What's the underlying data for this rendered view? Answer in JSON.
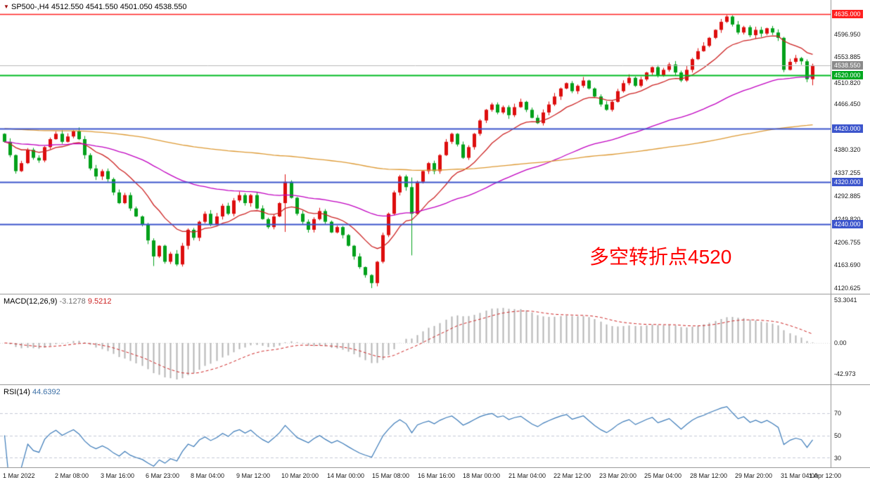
{
  "titlebar": {
    "symbol": "SP500-,H4",
    "ohlc": "4512.550 4541.550 4501.050 4538.550"
  },
  "price_panel": {
    "annotation": "多空转折点4520",
    "annotation_color": "#ff0000",
    "boxed_labels": [
      {
        "text": "4635.000",
        "color": "#ff2020"
      },
      {
        "text": "4538.550",
        "color": "#8a8a8a"
      },
      {
        "text": "4520.000",
        "color": "#00a81f"
      },
      {
        "text": "4420.000",
        "color": "#3c55cc"
      },
      {
        "text": "4320.000",
        "color": "#3c55cc"
      },
      {
        "text": "4240.000",
        "color": "#3c55cc"
      }
    ],
    "ticks": [
      "4596.950",
      "4553.885",
      "4510.820",
      "4466.450",
      "4380.320",
      "4337.255",
      "4292.885",
      "4249.820",
      "4206.755",
      "4163.690",
      "4120.625"
    ]
  },
  "macd_panel": {
    "name": "MACD(12,26,9)",
    "value_main": "-3.1278",
    "value_signal": "9.5212",
    "ticks": [
      "53.3041",
      "0.00",
      "-42.973"
    ]
  },
  "rsi_panel": {
    "name": "RSI(14)",
    "value": "44.6392",
    "ticks": [
      "70",
      "50",
      "30"
    ]
  },
  "time_axis": {
    "labels": [
      "1 Mar 2022",
      "2 Mar 08:00",
      "3 Mar 16:00",
      "6 Mar 23:00",
      "8 Mar 04:00",
      "9 Mar 12:00",
      "10 Mar 20:00",
      "14 Mar 00:00",
      "15 Mar 08:00",
      "16 Mar 16:00",
      "18 Mar 00:00",
      "21 Mar 04:00",
      "22 Mar 12:00",
      "23 Mar 20:00",
      "25 Mar 04:00",
      "28 Mar 12:00",
      "29 Mar 20:00",
      "31 Mar 04:00",
      "1 Apr 12:00"
    ]
  },
  "chart_data": {
    "type": "candlestick",
    "symbol": "SP500-",
    "timeframe": "H4",
    "title": "SP500-,H4 4512.550 4541.550 4501.050 4538.550",
    "last_bar": {
      "open": 4512.55,
      "high": 4541.55,
      "low": 4501.05,
      "close": 4538.55
    },
    "first_open": 4410,
    "closes": [
      4395,
      4370,
      4340,
      4355,
      4380,
      4365,
      4360,
      4385,
      4400,
      4410,
      4395,
      4405,
      4415,
      4400,
      4370,
      4345,
      4330,
      4340,
      4325,
      4300,
      4280,
      4295,
      4270,
      4255,
      4240,
      4210,
      4180,
      4200,
      4170,
      4185,
      4165,
      4200,
      4230,
      4215,
      4245,
      4260,
      4240,
      4255,
      4275,
      4260,
      4285,
      4295,
      4280,
      4295,
      4270,
      4250,
      4235,
      4255,
      4280,
      4320,
      4290,
      4260,
      4245,
      4230,
      4250,
      4265,
      4245,
      4225,
      4235,
      4220,
      4200,
      4180,
      4160,
      4145,
      4130,
      4170,
      4220,
      4260,
      4300,
      4330,
      4310,
      4260,
      4320,
      4340,
      4355,
      4340,
      4370,
      4395,
      4410,
      4390,
      4365,
      4385,
      4410,
      4435,
      4455,
      4465,
      4450,
      4460,
      4445,
      4460,
      4470,
      4455,
      4440,
      4430,
      4450,
      4465,
      4480,
      4495,
      4505,
      4490,
      4500,
      4510,
      4495,
      4480,
      4465,
      4455,
      4470,
      4490,
      4505,
      4515,
      4500,
      4512,
      4525,
      4535,
      4520,
      4530,
      4540,
      4525,
      4510,
      4530,
      4550,
      4565,
      4575,
      4590,
      4605,
      4620,
      4630,
      4615,
      4600,
      4610,
      4595,
      4605,
      4598,
      4608,
      4600,
      4590,
      4530,
      4545,
      4552,
      4546,
      4512.55,
      4538.55
    ],
    "wick_overrides": {
      "26": {
        "low": 4162
      },
      "49": {
        "high": 4334,
        "low": 4226
      },
      "64": {
        "low": 4120.6
      },
      "65": {
        "low": 4124
      },
      "71": {
        "high": 4328,
        "low": 4182
      },
      "141": {
        "high": 4541.55,
        "low": 4501.05
      }
    },
    "up_color": "#dd0d0d",
    "down_color": "#00a01a",
    "moving_averages": [
      {
        "period": 13,
        "color": "#cc2222"
      },
      {
        "period": 55,
        "color": "#c000c0"
      },
      {
        "period": 200,
        "color": "#dd9933",
        "seed": 4420
      }
    ],
    "hlines": [
      {
        "price": 4635.0,
        "color": "#ff2020",
        "width": 1.5
      },
      {
        "price": 4538.55,
        "color": "#b8b8b8",
        "width": 1
      },
      {
        "price": 4520.0,
        "color": "#00bb22",
        "width": 2
      },
      {
        "price": 4420.0,
        "color": "#3c55cc",
        "width": 2
      },
      {
        "price": 4320.0,
        "color": "#3c55cc",
        "width": 2
      },
      {
        "price": 4240.0,
        "color": "#3c55cc",
        "width": 2
      }
    ],
    "price_axis": {
      "visible_min": 4110,
      "visible_max": 4661,
      "ticks": [
        4596.95,
        4553.885,
        4510.82,
        4466.45,
        4380.32,
        4337.255,
        4292.885,
        4249.82,
        4206.755,
        4163.69,
        4120.625
      ]
    },
    "macd": {
      "fast": 12,
      "slow": 26,
      "signal": 9,
      "current_main": -3.1278,
      "current_signal": 9.5212,
      "axis": [
        53.3041,
        0.0,
        -42.973
      ],
      "hist_color": "#b4b4b4",
      "signal_color": "#cc2222"
    },
    "rsi": {
      "period": 14,
      "current": 44.6392,
      "levels": [
        70,
        50,
        30
      ],
      "line_color": "#3b7ab8",
      "visible_range": [
        22,
        95
      ]
    },
    "annotation": {
      "text": "多空转折点4520",
      "color": "#ff0000"
    },
    "x_labels": [
      "1 Mar 2022",
      "2 Mar 08:00",
      "3 Mar 16:00",
      "6 Mar 23:00",
      "8 Mar 04:00",
      "9 Mar 12:00",
      "10 Mar 20:00",
      "14 Mar 00:00",
      "15 Mar 08:00",
      "16 Mar 16:00",
      "18 Mar 00:00",
      "21 Mar 04:00",
      "22 Mar 12:00",
      "23 Mar 20:00",
      "25 Mar 04:00",
      "28 Mar 12:00",
      "29 Mar 20:00",
      "31 Mar 04:00",
      "1 Apr 12:00"
    ]
  }
}
